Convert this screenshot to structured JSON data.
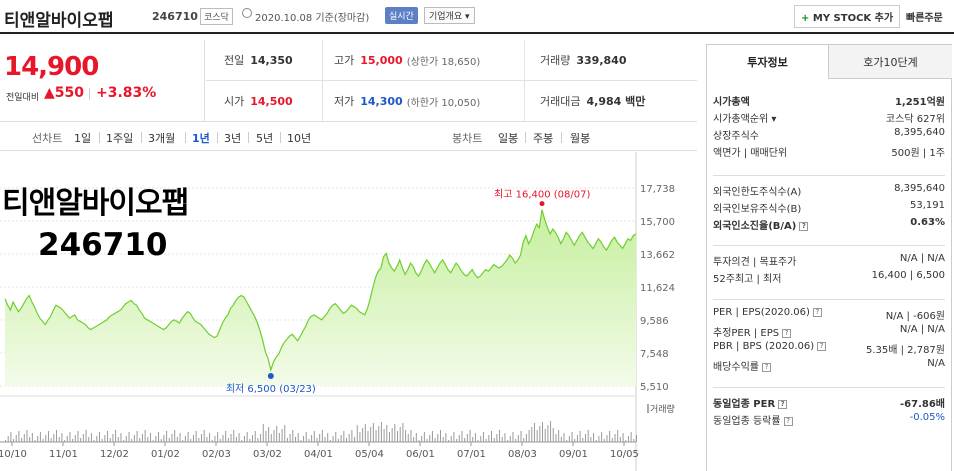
{
  "header": {
    "name": "티앤알바이오팹",
    "code": "246710",
    "market": "코스닥",
    "date": "2020.10.08 기준(장마감)",
    "realtime": "실시간",
    "overview": "기업개요 ▾",
    "mystock": "MY STOCK 추가",
    "mystock_plus": "+",
    "quick_order": "빠른주문"
  },
  "price": {
    "current": "14,900",
    "vs_label": "전일대비",
    "change": "▲550",
    "percent": "+3.83%"
  },
  "price_table": {
    "prev_label": "전일",
    "prev_value": "14,350",
    "open_label": "시가",
    "open_value": "14,500",
    "high_label": "고가",
    "high_value": "15,000",
    "upper_limit": "(상한가 18,650)",
    "low_label": "저가",
    "low_value": "14,300",
    "lower_limit": "(하한가 10,050)",
    "volume_label": "거래량",
    "volume_value": "339,840",
    "amount_label": "거래대금",
    "amount_value": "4,984 백만"
  },
  "period_tabs": {
    "line_label": "선차트",
    "line_items": [
      "1일",
      "1주일",
      "3개월",
      "1년",
      "3년",
      "5년",
      "10년"
    ],
    "active": "1년",
    "candle_label": "봉차트",
    "candle_items": [
      "일봉",
      "주봉",
      "월봉"
    ]
  },
  "overlay": {
    "name": "티앤알바이오팹",
    "code": "246710"
  },
  "chart_data": {
    "type": "area",
    "ylim": [
      5510,
      17738
    ],
    "yticks": [
      "17,738",
      "15,700",
      "13,662",
      "11,624",
      "9,586",
      "7,548",
      "5,510"
    ],
    "xticks": [
      "10/10",
      "11/01",
      "12/02",
      "01/02",
      "02/03",
      "03/02",
      "04/01",
      "05/04",
      "06/01",
      "07/01",
      "08/03",
      "09/01",
      "10/05"
    ],
    "high_label": "최고 16,400 (08/07)",
    "low_label": "최저 6,500 (03/23)",
    "volume_label": "거래량",
    "values": [
      10900,
      10500,
      10200,
      10700,
      10400,
      10100,
      10300,
      10600,
      10900,
      11100,
      10700,
      10400,
      10000,
      9700,
      9500,
      9300,
      9600,
      9800,
      10200,
      10500,
      10400,
      10300,
      10100,
      9900,
      9700,
      9800,
      9900,
      9600,
      9500,
      9400,
      9300,
      9100,
      9000,
      9100,
      9200,
      9300,
      9400,
      9500,
      9600,
      9800,
      9900,
      10000,
      10100,
      10200,
      10400,
      10600,
      10700,
      10800,
      10600,
      10500,
      10200,
      10000,
      9700,
      9600,
      9500,
      9400,
      9300,
      9200,
      9100,
      9000,
      9100,
      9300,
      9500,
      9600,
      9500,
      9400,
      9700,
      9900,
      10100,
      10000,
      9700,
      9500,
      9400,
      9300,
      9100,
      8900,
      8700,
      8600,
      8500,
      8600,
      9000,
      9400,
      9700,
      9900,
      10300,
      10500,
      10800,
      11000,
      11100,
      11000,
      10700,
      10400,
      10100,
      9800,
      9400,
      8900,
      8300,
      7600,
      7200,
      6500,
      7000,
      7300,
      7500,
      7900,
      8200,
      8400,
      8600,
      8700,
      8500,
      8300,
      8600,
      8900,
      9200,
      9600,
      9800,
      9900,
      9800,
      9700,
      9600,
      9800,
      10000,
      10300,
      10500,
      10600,
      10400,
      10200,
      10000,
      10100,
      10300,
      10500,
      10400,
      10300,
      10100,
      10000,
      9900,
      10300,
      10900,
      11600,
      12200,
      12600,
      12800,
      13500,
      13700,
      13100,
      12800,
      12600,
      12900,
      13300,
      12800,
      12400,
      12700,
      13100,
      12900,
      12500,
      12300,
      12600,
      13000,
      13300,
      13100,
      12800,
      12500,
      12800,
      13100,
      13300,
      13000,
      12700,
      12500,
      12800,
      13100,
      12900,
      12600,
      12400,
      12300,
      12500,
      12700,
      12400,
      12200,
      12300,
      12500,
      12700,
      12600,
      12800,
      13000,
      12900,
      12800,
      12900,
      13100,
      13300,
      13600,
      13400,
      13100,
      13300,
      13600,
      14400,
      14800,
      14300,
      14600,
      15100,
      15500,
      15300,
      16400,
      15800,
      15300,
      14900,
      15200,
      15000,
      14700,
      14300,
      14600,
      15000,
      14800,
      14500,
      14200,
      14500,
      14800,
      15000,
      14700,
      14400,
      14200,
      14000,
      14300,
      14600,
      14400,
      14100,
      13900,
      14200,
      14500,
      14700,
      14400,
      14200,
      14000,
      14300,
      14600,
      14500,
      14800,
      14900
    ]
  },
  "invest_panel": {
    "tab_on": "투자정보",
    "tab_off": "호가10단계",
    "rows1": [
      {
        "k": "시가총액",
        "v": "1,251억원",
        "bold": true
      },
      {
        "k": "시가총액순위 ▾",
        "v": "코스닥 627위"
      },
      {
        "k": "상장주식수",
        "v": "8,395,640"
      },
      {
        "k": "액면가 | 매매단위",
        "v": "500원 | 1주"
      }
    ],
    "rows2": [
      {
        "k": "외국인한도주식수(A)",
        "v": "8,395,640"
      },
      {
        "k": "외국인보유주식수(B)",
        "v": "53,191"
      },
      {
        "k": "외국인소진율(B/A)",
        "v": "0.63%",
        "bold": true,
        "q": true
      }
    ],
    "rows3": [
      {
        "k": "투자의견 | 목표주가",
        "v": "N/A | N/A"
      },
      {
        "k": "52주최고 | 최저",
        "v": "16,400 | 6,500"
      }
    ],
    "rows4": [
      {
        "k": "PER | EPS(2020.06)",
        "v": "N/A | -606원",
        "q": true
      },
      {
        "k": "추정PER | EPS",
        "v": "N/A | N/A",
        "q": true
      },
      {
        "k": "PBR | BPS (2020.06)",
        "v": "5.35배 | 2,787원",
        "q": true
      },
      {
        "k": "배당수익률",
        "v": "N/A",
        "q": true
      }
    ],
    "rows5": [
      {
        "k": "동일업종 PER",
        "v": "-67.86배",
        "bold": true,
        "q": true
      },
      {
        "k": "동일업종 등락률",
        "v": "-0.05%",
        "blue": true,
        "q": true
      }
    ]
  }
}
